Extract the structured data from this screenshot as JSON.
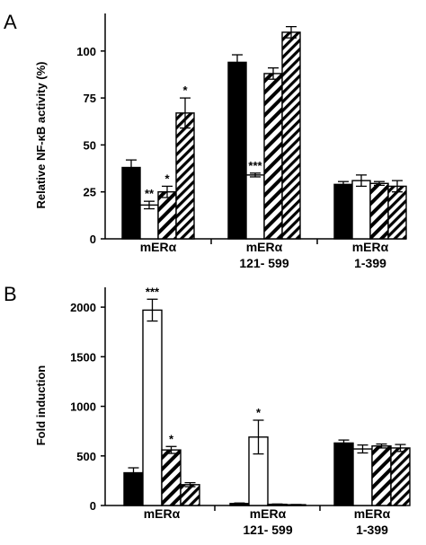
{
  "colors": {
    "axis": "#000000",
    "fill_black": "#000000",
    "fill_white": "#ffffff",
    "hatch": "#000000"
  },
  "chart_data": [
    {
      "type": "bar",
      "panel_label": "A",
      "ylabel": "Relative NF-κB activity (%)",
      "xlabel": "",
      "ylim": [
        0,
        120
      ],
      "yticks": [
        0,
        25,
        50,
        75,
        100
      ],
      "grid": false,
      "legend": "none",
      "category_lines": [
        [
          "mERα"
        ],
        [
          "mERα",
          "121- 599"
        ],
        [
          "mERα",
          "1-399"
        ]
      ],
      "series": [
        {
          "fill": "black",
          "values": [
            38,
            94,
            29
          ],
          "errors": [
            4,
            4,
            1.5
          ],
          "sig": [
            "",
            "",
            ""
          ]
        },
        {
          "fill": "white",
          "values": [
            18,
            34,
            31
          ],
          "errors": [
            2,
            1,
            3
          ],
          "sig": [
            "**",
            "***",
            ""
          ]
        },
        {
          "fill": "hatch-sparse",
          "values": [
            25,
            88,
            29.5
          ],
          "errors": [
            3,
            3,
            1
          ],
          "sig": [
            "*",
            "",
            ""
          ]
        },
        {
          "fill": "hatch-dense",
          "values": [
            67,
            110,
            28
          ],
          "errors": [
            8,
            3,
            3
          ],
          "sig": [
            "*",
            "",
            ""
          ]
        }
      ]
    },
    {
      "type": "bar",
      "panel_label": "B",
      "ylabel": "Fold induction",
      "xlabel": "",
      "ylim": [
        0,
        2200
      ],
      "yticks": [
        0,
        500,
        1000,
        1500,
        2000
      ],
      "grid": false,
      "legend": "none",
      "category_lines": [
        [
          "mERα"
        ],
        [
          "mERα",
          "121- 599"
        ],
        [
          "mERα",
          "1-399"
        ]
      ],
      "series": [
        {
          "fill": "black",
          "values": [
            330,
            20,
            630
          ],
          "errors": [
            50,
            5,
            30
          ],
          "sig": [
            "",
            "",
            ""
          ]
        },
        {
          "fill": "white",
          "values": [
            1970,
            690,
            570
          ],
          "errors": [
            110,
            170,
            40
          ],
          "sig": [
            "***",
            "*",
            ""
          ]
        },
        {
          "fill": "hatch-sparse",
          "values": [
            560,
            12,
            600
          ],
          "errors": [
            35,
            3,
            20
          ],
          "sig": [
            "*",
            "",
            ""
          ]
        },
        {
          "fill": "hatch-dense",
          "values": [
            210,
            8,
            580
          ],
          "errors": [
            20,
            2,
            35
          ],
          "sig": [
            "",
            "",
            ""
          ]
        }
      ]
    }
  ]
}
